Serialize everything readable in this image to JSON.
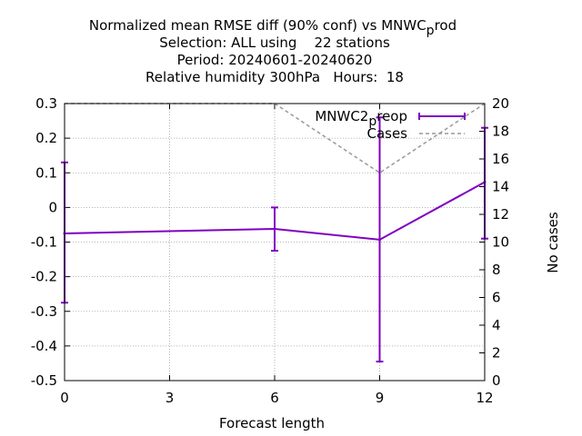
{
  "chart_data": {
    "type": "line",
    "title_lines": [
      "Normalized mean RMSE diff (90% conf) vs MNWC",
      "Selection: ALL using    22 stations",
      "Period: 20240601-20240620",
      "Relative humidity 300hPa   Hours:  18"
    ],
    "title_suffix_sub": "p",
    "title_suffix_tail": "rod",
    "xlabel": "Forecast length",
    "ylabel_right": "No cases",
    "xlim": [
      0,
      12
    ],
    "ylim": [
      -0.5,
      0.3
    ],
    "y2lim": [
      0,
      20
    ],
    "xticks": [
      0,
      3,
      6,
      9,
      12
    ],
    "yticks": [
      -0.5,
      -0.4,
      -0.3,
      -0.2,
      -0.1,
      0,
      0.1,
      0.2,
      0.3
    ],
    "y2ticks": [
      0,
      2,
      4,
      6,
      8,
      10,
      12,
      14,
      16,
      18,
      20
    ],
    "grid": true,
    "legend": "top-right",
    "series": [
      {
        "name_main": "MNWC2",
        "name_sub": "p",
        "name_tail": "reop",
        "axis": "y",
        "color": "#8000c0",
        "x": [
          0,
          6,
          9,
          12
        ],
        "y": [
          -0.075,
          -0.062,
          -0.093,
          0.073
        ],
        "err_low": [
          -0.275,
          -0.125,
          -0.445,
          -0.09
        ],
        "err_high": [
          0.13,
          0.0,
          0.26,
          0.23
        ]
      },
      {
        "name": "Cases",
        "axis": "y2",
        "color": "#999999",
        "x": [
          0,
          6,
          9,
          12
        ],
        "y": [
          20,
          20,
          15,
          20
        ]
      }
    ]
  }
}
